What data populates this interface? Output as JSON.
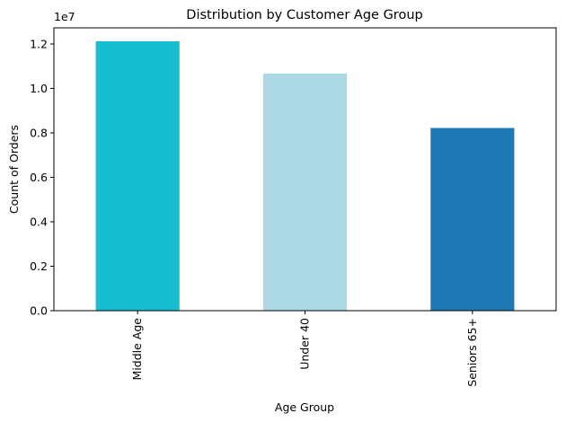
{
  "chart_data": {
    "type": "bar",
    "title": "Distribution by Customer Age Group",
    "xlabel": "Age Group",
    "ylabel": "Count of Orders",
    "categories": [
      "Middle Age",
      "Under 40",
      "Seniors 65+"
    ],
    "values": [
      12120000,
      10670000,
      8220000
    ],
    "colors": [
      "#17becf",
      "#add8e6",
      "#1f77b4"
    ],
    "ylim": [
      0,
      12726000
    ],
    "yticks": [
      0,
      2000000,
      4000000,
      6000000,
      8000000,
      10000000,
      12000000
    ],
    "ytick_labels": [
      "0.0",
      "0.2",
      "0.4",
      "0.6",
      "0.8",
      "1.0",
      "1.2"
    ],
    "y_offset_label": "1e7",
    "x_tick_rotation": "vertical",
    "grid": false,
    "legend": "none"
  }
}
